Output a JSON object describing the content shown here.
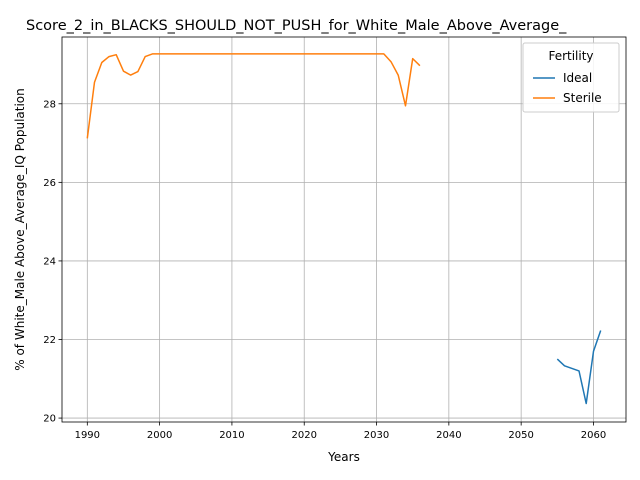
{
  "chart_data": {
    "type": "line",
    "title": "Score_2_in_BLACKS_SHOULD_NOT_PUSH_for_White_Male_Above_Average_",
    "xlabel": "Years",
    "ylabel": "% of White_Male Above_Average_IQ Population",
    "xlim": [
      1986.5,
      2064.5
    ],
    "ylim": [
      19.9,
      29.7
    ],
    "xticks": [
      1990,
      2000,
      2010,
      2020,
      2030,
      2040,
      2050,
      2060
    ],
    "yticks": [
      20,
      22,
      24,
      26,
      28
    ],
    "grid": true,
    "legend": {
      "title": "Fertility",
      "position": "top-right"
    },
    "series": [
      {
        "name": "Ideal",
        "color": "#1f77b4",
        "x": [
          2055,
          2056,
          2058,
          2059,
          2060,
          2061
        ],
        "y": [
          21.5,
          21.33,
          21.2,
          20.37,
          21.7,
          22.23
        ]
      },
      {
        "name": "Sterile",
        "color": "#ff7f0e",
        "x": [
          1990,
          1991,
          1992,
          1993,
          1994,
          1995,
          1996,
          1997,
          1998,
          1999,
          2000,
          2005,
          2010,
          2015,
          2020,
          2025,
          2030,
          2031,
          2032,
          2033,
          2034,
          2035,
          2036
        ],
        "y": [
          27.12,
          28.55,
          29.05,
          29.2,
          29.25,
          28.83,
          28.73,
          28.82,
          29.2,
          29.27,
          29.27,
          29.27,
          29.27,
          29.27,
          29.27,
          29.27,
          29.27,
          29.27,
          29.07,
          28.73,
          27.95,
          29.15,
          28.97
        ]
      }
    ]
  }
}
